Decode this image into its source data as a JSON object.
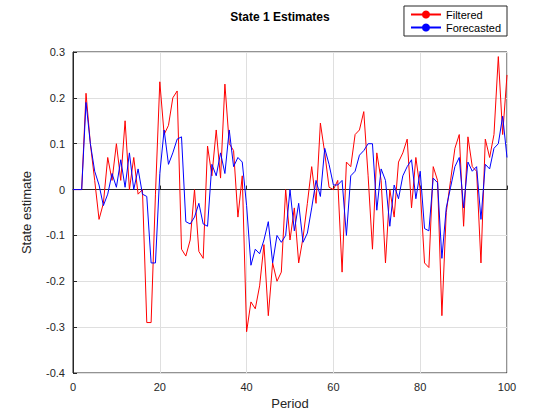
{
  "chart_data": {
    "type": "line",
    "title": "State 1 Estimates",
    "x_label": "Period",
    "y_label": "State estimate",
    "x": [
      0,
      1,
      2,
      3,
      4,
      5,
      6,
      7,
      8,
      9,
      10,
      11,
      12,
      13,
      14,
      15,
      16,
      17,
      18,
      19,
      20,
      21,
      22,
      23,
      24,
      25,
      26,
      27,
      28,
      29,
      30,
      31,
      32,
      33,
      34,
      35,
      36,
      37,
      38,
      39,
      40,
      41,
      42,
      43,
      44,
      45,
      46,
      47,
      48,
      49,
      50,
      51,
      52,
      53,
      54,
      55,
      56,
      57,
      58,
      59,
      60,
      61,
      62,
      63,
      64,
      65,
      66,
      67,
      68,
      69,
      70,
      71,
      72,
      73,
      74,
      75,
      76,
      77,
      78,
      79,
      80,
      81,
      82,
      83,
      84,
      85,
      86,
      87,
      88,
      89,
      90,
      91,
      92,
      93,
      94,
      95,
      96,
      97,
      98,
      99,
      100
    ],
    "series": [
      {
        "name": "Filtered",
        "color": "#ff0000",
        "values": [
          0,
          0,
          0,
          0.21,
          0.1,
          0.02,
          -0.065,
          -0.03,
          0.07,
          0.02,
          0.1,
          0.02,
          0.15,
          0.0,
          0.07,
          -0.01,
          0.0,
          -0.29,
          -0.29,
          -0.01,
          0.235,
          0.12,
          0.14,
          0.2,
          0.215,
          -0.13,
          -0.145,
          -0.11,
          0.0,
          -0.135,
          -0.15,
          0.095,
          0.03,
          0.13,
          0.025,
          0.23,
          0.1,
          0.085,
          -0.06,
          0.03,
          -0.31,
          -0.245,
          -0.26,
          -0.21,
          -0.12,
          -0.275,
          -0.16,
          -0.2,
          -0.18,
          0.0,
          -0.11,
          -0.04,
          -0.16,
          -0.105,
          -0.03,
          0.05,
          -0.03,
          0.145,
          0.08,
          0.005,
          0.0,
          0.02,
          -0.18,
          0.06,
          0.05,
          0.12,
          0.13,
          0.17,
          0.03,
          -0.13,
          0.08,
          0.02,
          -0.16,
          0.0,
          -0.06,
          0.06,
          0.08,
          0.11,
          -0.04,
          0.07,
          0.0,
          -0.16,
          -0.17,
          0.05,
          0.02,
          -0.275,
          -0.05,
          0.02,
          0.09,
          0.12,
          -0.08,
          0.115,
          0.05,
          0.04,
          -0.16,
          0.11,
          0.07,
          0.12,
          0.29,
          0.12,
          0.25
        ]
      },
      {
        "name": "Forecasted",
        "color": "#0000ff",
        "values": [
          0,
          0,
          0,
          0.19,
          0.1,
          0.04,
          0.01,
          -0.035,
          -0.01,
          0.035,
          0.005,
          0.065,
          0.005,
          0.08,
          0.0,
          0.045,
          -0.01,
          -0.015,
          -0.16,
          -0.16,
          0.035,
          0.13,
          0.055,
          0.08,
          0.11,
          0.115,
          -0.07,
          -0.075,
          -0.06,
          -0.03,
          -0.075,
          -0.08,
          0.055,
          0.03,
          0.08,
          0.035,
          0.13,
          0.05,
          0.07,
          0.06,
          -0.035,
          -0.165,
          -0.13,
          -0.14,
          -0.11,
          -0.07,
          -0.16,
          -0.1,
          -0.115,
          -0.1,
          0.0,
          -0.09,
          -0.03,
          -0.115,
          -0.095,
          -0.04,
          0.02,
          -0.015,
          0.09,
          0.055,
          0.01,
          0.01,
          0.02,
          -0.1,
          0.03,
          0.04,
          0.075,
          0.085,
          0.1,
          0.1,
          -0.045,
          0.045,
          0.02,
          -0.08,
          0.01,
          -0.02,
          0.03,
          0.05,
          0.065,
          -0.02,
          0.04,
          -0.085,
          -0.09,
          0.025,
          0.015,
          -0.15,
          -0.04,
          0.005,
          0.05,
          0.07,
          -0.04,
          0.06,
          0.04,
          0.05,
          -0.065,
          0.055,
          0.045,
          0.09,
          0.1,
          0.16,
          0.07
        ]
      }
    ],
    "xlim": [
      0,
      100
    ],
    "xticks": [
      0,
      20,
      40,
      60,
      80,
      100
    ],
    "ylim": [
      -0.4,
      0.3
    ],
    "yticks": [
      -0.4,
      -0.3,
      -0.2,
      -0.1,
      0,
      0.1,
      0.2,
      0.3
    ],
    "grid": true,
    "legend": "top-right"
  }
}
